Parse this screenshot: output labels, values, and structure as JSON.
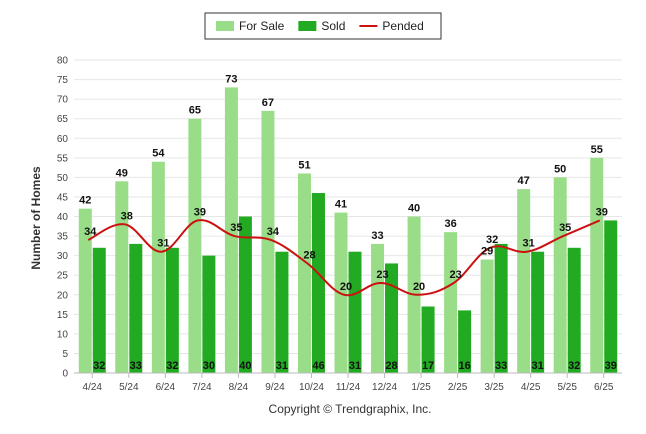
{
  "chart_data": {
    "type": "bar",
    "categories": [
      "4/24",
      "5/24",
      "6/24",
      "7/24",
      "8/24",
      "9/24",
      "10/24",
      "11/24",
      "12/24",
      "1/25",
      "2/25",
      "3/25",
      "4/25",
      "5/25",
      "6/25"
    ],
    "series": [
      {
        "name": "For Sale",
        "kind": "bar",
        "color": "#99dd88",
        "values": [
          42,
          49,
          54,
          65,
          73,
          67,
          51,
          41,
          33,
          40,
          36,
          29,
          47,
          50,
          55
        ]
      },
      {
        "name": "Sold",
        "kind": "bar",
        "color": "#22aa22",
        "values": [
          32,
          33,
          32,
          30,
          40,
          31,
          46,
          31,
          28,
          17,
          16,
          33,
          31,
          32,
          39
        ]
      },
      {
        "name": "Pended",
        "kind": "line",
        "color": "#cc1111",
        "values": [
          34,
          38,
          31,
          39,
          35,
          34,
          28,
          20,
          23,
          20,
          23,
          32,
          31,
          35,
          39
        ]
      }
    ],
    "ylabel": "Number of Homes",
    "ylim": [
      0,
      80
    ],
    "yticks": [
      0,
      5,
      10,
      15,
      20,
      25,
      30,
      35,
      40,
      45,
      50,
      55,
      60,
      65,
      70,
      75,
      80
    ],
    "grid": true,
    "legend_position": "top-center"
  },
  "footer": "Copyright © Trendgraphix, Inc."
}
